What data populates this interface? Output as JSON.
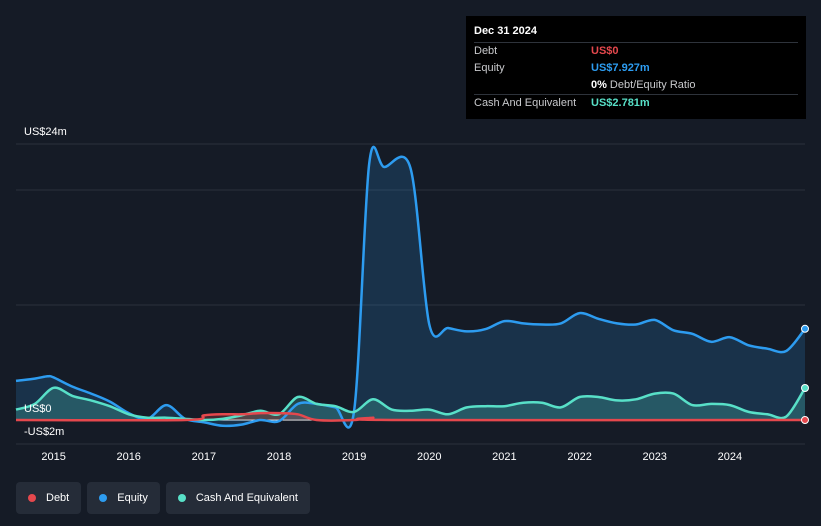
{
  "tooltip": {
    "date": "Dec 31 2024",
    "rows": [
      {
        "label": "Debt",
        "value": "US$0",
        "color": "#e5484d"
      },
      {
        "label": "Equity",
        "value": "US$7.927m",
        "color": "#2d9cf0"
      },
      {
        "label": "",
        "value": "0%",
        "sub": "Debt/Equity Ratio",
        "color": "#ffffff"
      },
      {
        "label": "Cash And Equivalent",
        "value": "US$2.781m",
        "color": "#58e0c8"
      }
    ]
  },
  "legend": [
    {
      "label": "Debt",
      "color": "#e5484d"
    },
    {
      "label": "Equity",
      "color": "#2d9cf0"
    },
    {
      "label": "Cash And Equivalent",
      "color": "#58e0c8"
    }
  ],
  "chart_data": {
    "type": "area",
    "x_ticks": [
      "2015",
      "2016",
      "2017",
      "2018",
      "2019",
      "2020",
      "2021",
      "2022",
      "2023",
      "2024"
    ],
    "y_tick_labels": [
      "US$24m",
      "US$0",
      "-US$2m"
    ],
    "ylim": [
      -2,
      24
    ],
    "xlim": [
      2014.5,
      2025.0
    ],
    "series": [
      {
        "name": "Equity",
        "color": "#2d9cf0",
        "points": [
          [
            2014.5,
            3.4
          ],
          [
            2014.75,
            3.6
          ],
          [
            2014.92,
            3.8
          ],
          [
            2015.0,
            3.7
          ],
          [
            2015.25,
            2.9
          ],
          [
            2015.5,
            2.3
          ],
          [
            2015.75,
            1.6
          ],
          [
            2016.0,
            0.6
          ],
          [
            2016.25,
            0.1
          ],
          [
            2016.5,
            1.3
          ],
          [
            2016.75,
            0.1
          ],
          [
            2017.0,
            -0.2
          ],
          [
            2017.25,
            -0.5
          ],
          [
            2017.5,
            -0.4
          ],
          [
            2017.75,
            0.0
          ],
          [
            2018.0,
            -0.1
          ],
          [
            2018.25,
            1.4
          ],
          [
            2018.5,
            1.4
          ],
          [
            2018.75,
            1.1
          ],
          [
            2019.0,
            0.8
          ],
          [
            2019.2,
            22.3
          ],
          [
            2019.4,
            22.0
          ],
          [
            2019.75,
            21.9
          ],
          [
            2020.0,
            8.3
          ],
          [
            2020.25,
            8.0
          ],
          [
            2020.5,
            7.7
          ],
          [
            2020.75,
            7.9
          ],
          [
            2021.0,
            8.6
          ],
          [
            2021.25,
            8.4
          ],
          [
            2021.5,
            8.3
          ],
          [
            2021.75,
            8.4
          ],
          [
            2022.0,
            9.3
          ],
          [
            2022.25,
            8.8
          ],
          [
            2022.5,
            8.4
          ],
          [
            2022.75,
            8.3
          ],
          [
            2023.0,
            8.7
          ],
          [
            2023.25,
            7.8
          ],
          [
            2023.5,
            7.5
          ],
          [
            2023.75,
            6.8
          ],
          [
            2024.0,
            7.2
          ],
          [
            2024.25,
            6.5
          ],
          [
            2024.5,
            6.2
          ],
          [
            2024.75,
            6.0
          ],
          [
            2025.0,
            7.927
          ]
        ]
      },
      {
        "name": "Cash And Equivalent",
        "color": "#58e0c8",
        "points": [
          [
            2014.5,
            0.9
          ],
          [
            2014.75,
            1.4
          ],
          [
            2015.0,
            2.8
          ],
          [
            2015.25,
            2.1
          ],
          [
            2015.5,
            1.7
          ],
          [
            2015.75,
            1.2
          ],
          [
            2016.0,
            0.5
          ],
          [
            2016.25,
            0.2
          ],
          [
            2016.5,
            0.2
          ],
          [
            2016.75,
            0.1
          ],
          [
            2017.0,
            0.0
          ],
          [
            2017.25,
            0.1
          ],
          [
            2017.5,
            0.4
          ],
          [
            2017.75,
            0.8
          ],
          [
            2018.0,
            0.5
          ],
          [
            2018.25,
            2.0
          ],
          [
            2018.5,
            1.4
          ],
          [
            2018.75,
            1.2
          ],
          [
            2019.0,
            0.7
          ],
          [
            2019.25,
            1.8
          ],
          [
            2019.5,
            0.9
          ],
          [
            2019.75,
            0.8
          ],
          [
            2020.0,
            0.9
          ],
          [
            2020.25,
            0.5
          ],
          [
            2020.5,
            1.1
          ],
          [
            2020.75,
            1.2
          ],
          [
            2021.0,
            1.2
          ],
          [
            2021.25,
            1.5
          ],
          [
            2021.5,
            1.5
          ],
          [
            2021.75,
            1.1
          ],
          [
            2022.0,
            2.0
          ],
          [
            2022.25,
            2.0
          ],
          [
            2022.5,
            1.7
          ],
          [
            2022.75,
            1.8
          ],
          [
            2023.0,
            2.3
          ],
          [
            2023.25,
            2.3
          ],
          [
            2023.5,
            1.3
          ],
          [
            2023.75,
            1.4
          ],
          [
            2024.0,
            1.3
          ],
          [
            2024.25,
            0.7
          ],
          [
            2024.5,
            0.5
          ],
          [
            2024.75,
            0.3
          ],
          [
            2025.0,
            2.781
          ]
        ]
      },
      {
        "name": "Debt",
        "color": "#e5484d",
        "points": [
          [
            2014.5,
            0.0
          ],
          [
            2016.75,
            0.0
          ],
          [
            2017.0,
            0.4
          ],
          [
            2017.25,
            0.5
          ],
          [
            2017.5,
            0.5
          ],
          [
            2017.75,
            0.6
          ],
          [
            2018.0,
            0.6
          ],
          [
            2018.25,
            0.5
          ],
          [
            2018.5,
            0.0
          ],
          [
            2019.0,
            0.0
          ],
          [
            2019.25,
            0.2
          ],
          [
            2019.5,
            0.0
          ],
          [
            2025.0,
            0.0
          ]
        ]
      }
    ]
  }
}
